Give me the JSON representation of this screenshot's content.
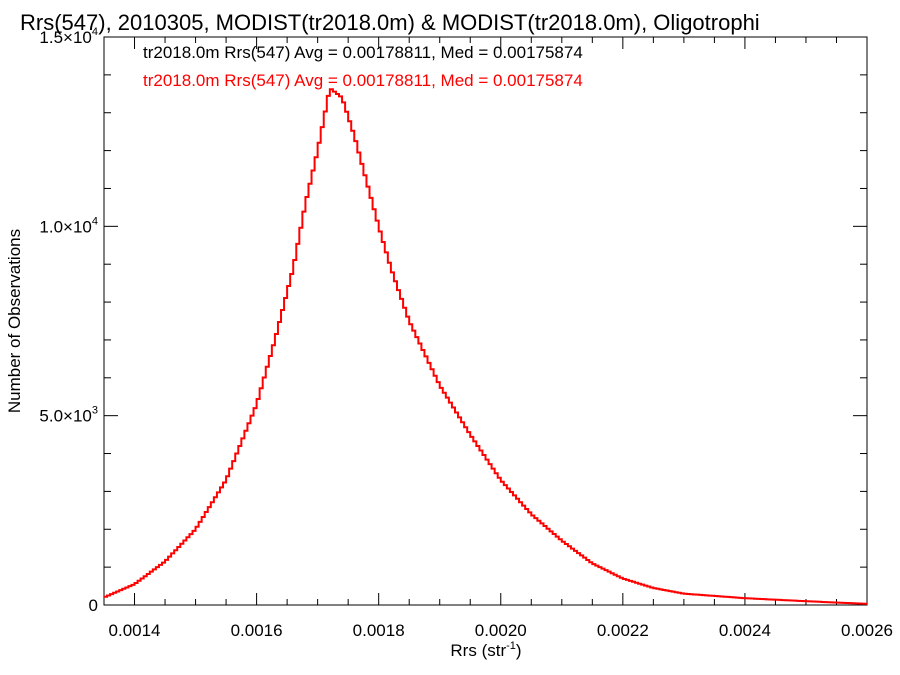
{
  "chart_data": {
    "type": "line",
    "subtype": "step-histogram",
    "title": "Rrs(547), 2010305, MODIST(tr2018.0m) & MODIST(tr2018.0m), Oligotrophi",
    "xlabel": "Rrs (str",
    "xlabel_sup": "-1",
    "xlabel_end": ")",
    "ylabel": "Number of Observations",
    "xlim": [
      0.00135,
      0.0026
    ],
    "ylim": [
      0,
      15000
    ],
    "x_ticks": [
      0.0014,
      0.0016,
      0.0018,
      0.002,
      0.0022,
      0.0024,
      0.0026
    ],
    "x_tick_labels": [
      "0.0014",
      "0.0016",
      "0.0018",
      "0.0020",
      "0.0022",
      "0.0024",
      "0.0026"
    ],
    "y_ticks": [
      0,
      5000,
      10000,
      15000
    ],
    "y_tick_labels": [
      {
        "main": "0",
        "sup": ""
      },
      {
        "main": "5.0×10",
        "sup": "3"
      },
      {
        "main": "1.0×10",
        "sup": "4"
      },
      {
        "main": "1.5×10",
        "sup": "4"
      }
    ],
    "legend": [
      {
        "text": "tr2018.0m Rrs(547) Avg = 0.00178811, Med = 0.00175874",
        "color": "#000000"
      },
      {
        "text": "tr2018.0m Rrs(547) Avg = 0.00178811, Med = 0.00175874",
        "color": "#ff0000"
      }
    ],
    "legend_position": "top-left",
    "series": [
      {
        "color": "#ff0000",
        "anchors_x": [
          0.00135,
          0.0014,
          0.00145,
          0.0015,
          0.00155,
          0.0016,
          0.00163,
          0.00166,
          0.00168,
          0.0017,
          0.00172,
          0.00174,
          0.00176,
          0.00178,
          0.0018,
          0.00182,
          0.00185,
          0.0019,
          0.00195,
          0.002,
          0.00205,
          0.0021,
          0.00215,
          0.0022,
          0.00225,
          0.0023,
          0.0024,
          0.0025,
          0.0026
        ],
        "anchors_y": [
          200,
          550,
          1150,
          2000,
          3300,
          5300,
          7000,
          8900,
          10600,
          12000,
          13650,
          13400,
          12400,
          11200,
          10000,
          8900,
          7500,
          5800,
          4500,
          3300,
          2400,
          1700,
          1100,
          700,
          450,
          300,
          180,
          100,
          30
        ]
      }
    ]
  }
}
